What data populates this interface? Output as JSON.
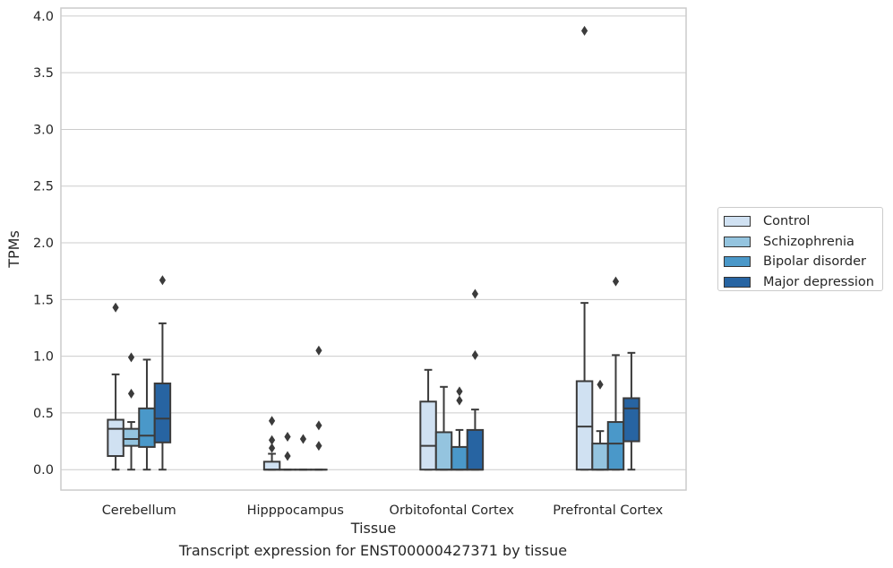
{
  "chart_data": {
    "type": "box",
    "xlabel": "Tissue",
    "ylabel": "TPMs",
    "ylim": [
      -0.18,
      4.07
    ],
    "yticks": [
      "0.0",
      "0.5",
      "1.0",
      "1.5",
      "2.0",
      "2.5",
      "3.0",
      "3.5",
      "4.0"
    ],
    "grid": true,
    "legend_position": "right",
    "categories": [
      "Cerebellum",
      "Hipppocampus",
      "Orbitofontal Cortex",
      "Prefrontal Cortex"
    ],
    "series": [
      {
        "name": "Control",
        "color": "#d0e1f2",
        "boxes": [
          {
            "whisker_low": 0.0,
            "q1": 0.12,
            "median": 0.36,
            "q3": 0.44,
            "whisker_high": 0.84,
            "outliers": [
              1.43
            ]
          },
          {
            "whisker_low": 0.0,
            "q1": 0.0,
            "median": 0.0,
            "q3": 0.07,
            "whisker_high": 0.14,
            "outliers": [
              0.19,
              0.26,
              0.43
            ]
          },
          {
            "whisker_low": 0.0,
            "q1": 0.0,
            "median": 0.21,
            "q3": 0.6,
            "whisker_high": 0.88,
            "outliers": []
          },
          {
            "whisker_low": 0.0,
            "q1": 0.0,
            "median": 0.38,
            "q3": 0.78,
            "whisker_high": 1.47,
            "outliers": [
              3.87
            ]
          }
        ]
      },
      {
        "name": "Schizophrenia",
        "color": "#94c4df",
        "boxes": [
          {
            "whisker_low": 0.0,
            "q1": 0.21,
            "median": 0.27,
            "q3": 0.36,
            "whisker_high": 0.42,
            "outliers": [
              0.67,
              0.99
            ]
          },
          {
            "whisker_low": 0.0,
            "q1": 0.0,
            "median": 0.0,
            "q3": 0.0,
            "whisker_high": 0.0,
            "outliers": [
              0.12,
              0.29
            ]
          },
          {
            "whisker_low": 0.0,
            "q1": 0.0,
            "median": 0.0,
            "q3": 0.33,
            "whisker_high": 0.73,
            "outliers": []
          },
          {
            "whisker_low": 0.0,
            "q1": 0.0,
            "median": 0.0,
            "q3": 0.23,
            "whisker_high": 0.34,
            "outliers": [
              0.75
            ]
          }
        ]
      },
      {
        "name": "Bipolar disorder",
        "color": "#4a98c9",
        "boxes": [
          {
            "whisker_low": 0.0,
            "q1": 0.2,
            "median": 0.3,
            "q3": 0.54,
            "whisker_high": 0.97,
            "outliers": []
          },
          {
            "whisker_low": 0.0,
            "q1": 0.0,
            "median": 0.0,
            "q3": 0.0,
            "whisker_high": 0.0,
            "outliers": [
              0.27
            ]
          },
          {
            "whisker_low": 0.0,
            "q1": 0.0,
            "median": 0.0,
            "q3": 0.2,
            "whisker_high": 0.35,
            "outliers": [
              0.61,
              0.69
            ]
          },
          {
            "whisker_low": 0.0,
            "q1": 0.0,
            "median": 0.23,
            "q3": 0.42,
            "whisker_high": 1.01,
            "outliers": [
              1.66
            ]
          }
        ]
      },
      {
        "name": "Major depression",
        "color": "#2764a2",
        "boxes": [
          {
            "whisker_low": 0.0,
            "q1": 0.24,
            "median": 0.45,
            "q3": 0.76,
            "whisker_high": 1.29,
            "outliers": [
              1.67
            ]
          },
          {
            "whisker_low": 0.0,
            "q1": 0.0,
            "median": 0.0,
            "q3": 0.0,
            "whisker_high": 0.0,
            "outliers": [
              0.21,
              0.39,
              1.05
            ]
          },
          {
            "whisker_low": 0.0,
            "q1": 0.0,
            "median": 0.0,
            "q3": 0.35,
            "whisker_high": 0.53,
            "outliers": [
              1.01,
              1.55
            ]
          },
          {
            "whisker_low": 0.0,
            "q1": 0.25,
            "median": 0.54,
            "q3": 0.63,
            "whisker_high": 1.03,
            "outliers": []
          }
        ]
      }
    ]
  },
  "caption": "Transcript expression for ENST00000427371 by tissue"
}
